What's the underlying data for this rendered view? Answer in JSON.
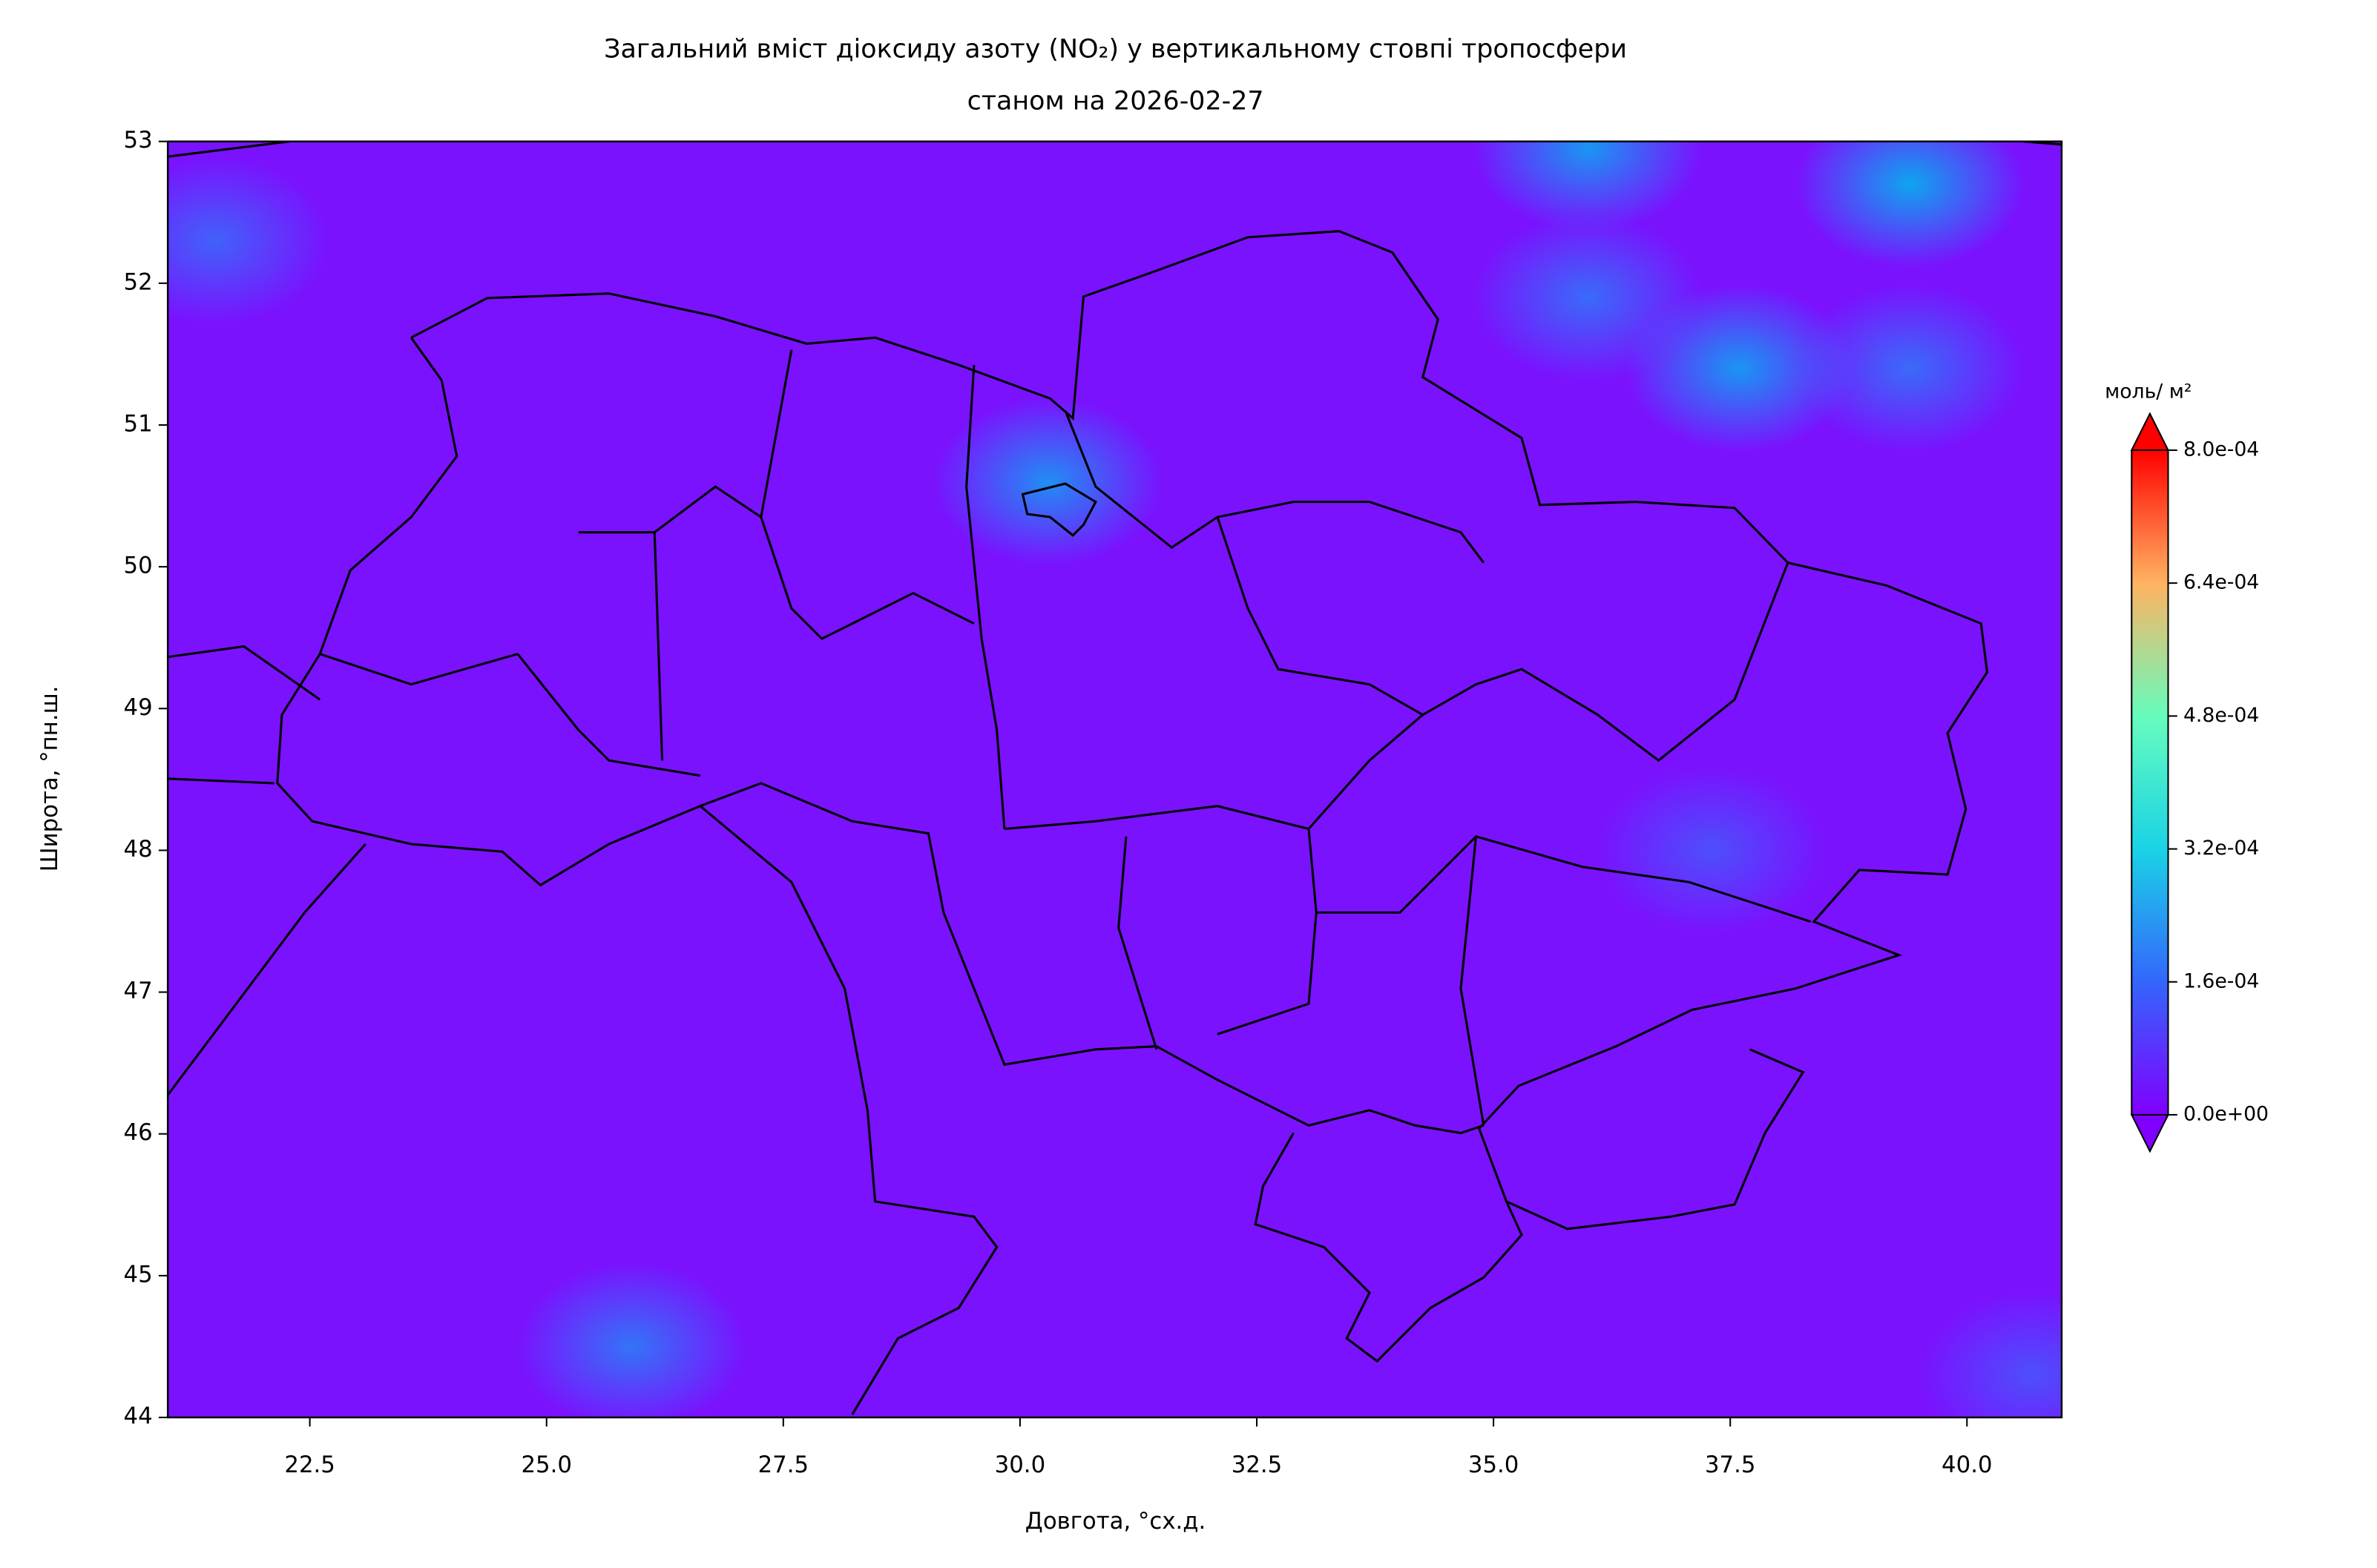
{
  "chart_data": {
    "type": "contour-map",
    "title": "Загальний вміст діоксиду азоту (NO₂) у вертикальному стовпі тропосфери",
    "subtitle": "станом на 2026-02-27",
    "x_label": "Довгота, °сх.д.",
    "y_label": "Широта, °пн.ш.",
    "xlim": [
      21,
      41
    ],
    "ylim": [
      44,
      53
    ],
    "xticks": [
      22.5,
      {
        "value": 25,
        "label": "25.0"
      },
      27.5,
      {
        "value": 30,
        "label": "30.0"
      },
      32.5,
      {
        "value": 35,
        "label": "35.0"
      },
      37.5,
      {
        "value": 40,
        "label": "40.0"
      }
    ],
    "yticks": [
      44,
      45,
      46,
      47,
      48,
      49,
      50,
      51,
      52,
      53
    ],
    "colorbar": {
      "label": "моль/ м²",
      "colormap": "rainbow",
      "lim": [
        0,
        0.0008
      ],
      "ticks": [
        {
          "value": 0,
          "label": "0.0e+00"
        },
        {
          "value": 0.00016,
          "label": "1.6e-04"
        },
        {
          "value": 0.00032,
          "label": "3.2e-04"
        },
        {
          "value": 0.00048,
          "label": "4.8e-04"
        },
        {
          "value": 0.00064,
          "label": "6.4e-04"
        },
        {
          "value": 0.0008,
          "label": "8.0e-04"
        }
      ]
    },
    "points": [
      {
        "lon": 30.3,
        "lat": 50.6,
        "value": 0.00015
      },
      {
        "lon": 39.4,
        "lat": 52.7,
        "value": 0.00018
      },
      {
        "lon": 37.6,
        "lat": 51.4,
        "value": 0.00016
      },
      {
        "lon": 36.0,
        "lat": 52.95,
        "value": 0.00016
      },
      {
        "lon": 39.4,
        "lat": 51.4,
        "value": 0.00011
      },
      {
        "lon": 36.0,
        "lat": 51.9,
        "value": 0.00011
      },
      {
        "lon": 25.9,
        "lat": 44.5,
        "value": 0.00012
      },
      {
        "lon": 21.5,
        "lat": 52.3,
        "value": 0.0001
      },
      {
        "lon": 37.3,
        "lat": 48.0,
        "value": 8e-05
      },
      {
        "lon": 40.7,
        "lat": 44.3,
        "value": 8e-05
      }
    ]
  }
}
